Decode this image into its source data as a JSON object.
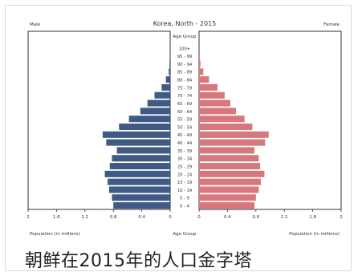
{
  "caption": "朝鲜在2015年的人口金字塔",
  "chart_data": {
    "type": "bar",
    "orientation": "horizontal-pyramid",
    "title": "Korea, North - 2015",
    "left_label": "Male",
    "right_label": "Female",
    "center_header": "Age Group",
    "xlabel_left": "Population (in millions)",
    "xlabel_center": "Age Group",
    "xlabel_right": "Population (in millions)",
    "xlim": [
      0,
      2
    ],
    "x_ticks_left": [
      "2",
      "1.6",
      "1.2",
      "0.8",
      "0.4",
      "0"
    ],
    "x_ticks_right": [
      "0",
      "0.4",
      "0.8",
      "1.2",
      "1.6",
      "2"
    ],
    "categories": [
      "100+",
      "95 - 99",
      "90 - 94",
      "85 - 89",
      "80 - 84",
      "75 - 79",
      "70 - 74",
      "65 - 69",
      "60 - 64",
      "55 - 59",
      "50 - 54",
      "45 - 49",
      "40 - 44",
      "35 - 39",
      "30 - 34",
      "25 - 29",
      "20 - 24",
      "15 - 19",
      "10 - 14",
      "5 - 9",
      "0 - 4"
    ],
    "series": [
      {
        "name": "Male",
        "color": "#3f5a85",
        "values": [
          0.0,
          0.0,
          0.01,
          0.02,
          0.06,
          0.12,
          0.22,
          0.32,
          0.42,
          0.58,
          0.72,
          0.95,
          0.9,
          0.75,
          0.82,
          0.85,
          0.92,
          0.88,
          0.86,
          0.82,
          0.8
        ]
      },
      {
        "name": "Female",
        "color": "#d9787c",
        "values": [
          0.0,
          0.01,
          0.02,
          0.06,
          0.14,
          0.26,
          0.36,
          0.44,
          0.52,
          0.64,
          0.75,
          0.98,
          0.93,
          0.78,
          0.84,
          0.86,
          0.92,
          0.87,
          0.84,
          0.8,
          0.78
        ]
      }
    ],
    "grid": false,
    "legend": "none"
  }
}
